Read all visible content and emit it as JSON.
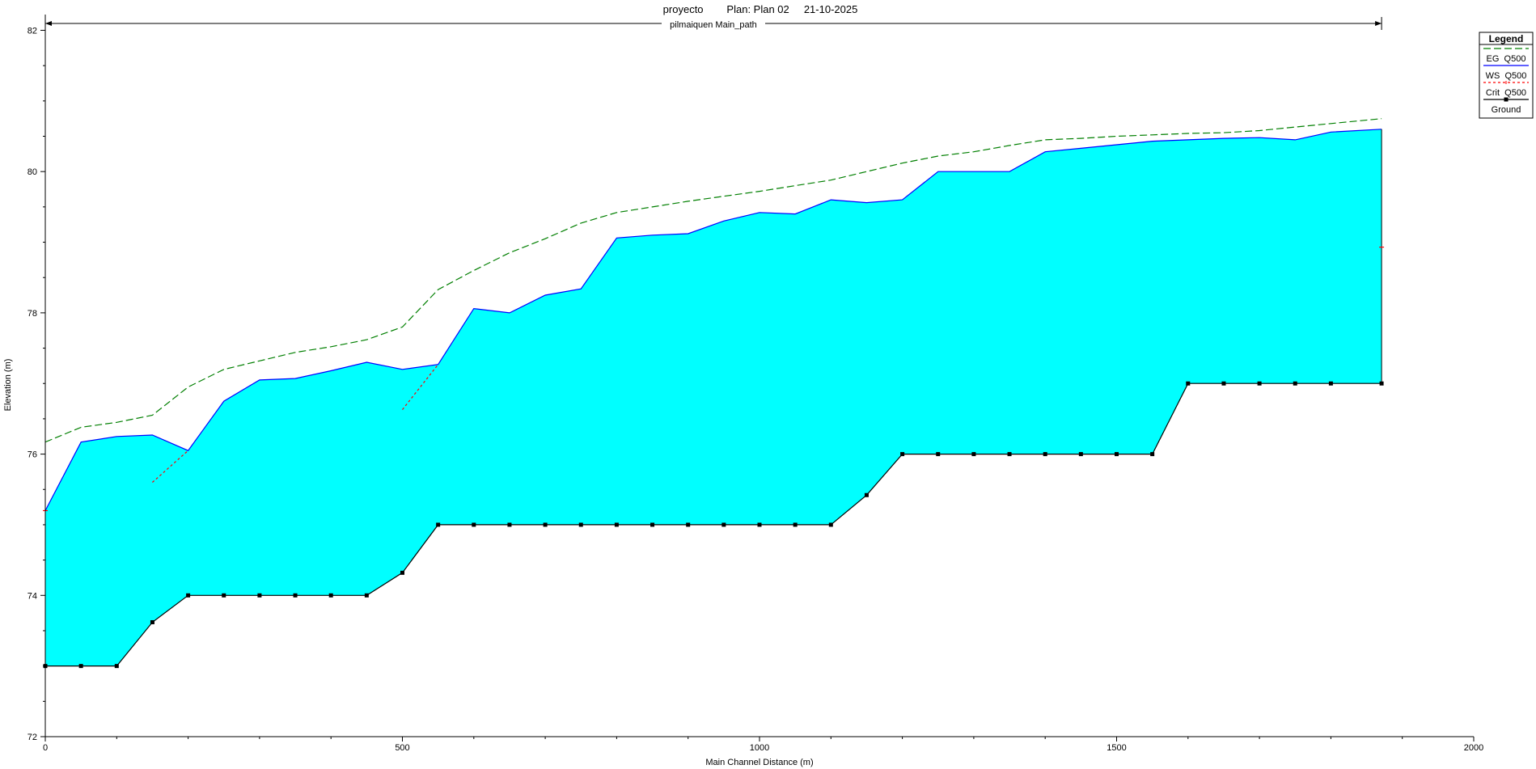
{
  "chart_data": {
    "type": "line",
    "title": "proyecto        Plan: Plan 02     21-10-2025",
    "reach_label": "pilmaiquen Main_path",
    "xlabel": "Main Channel Distance (m)",
    "ylabel": "Elevation (m)",
    "xlim": [
      0,
      2000
    ],
    "ylim": [
      72,
      82.2
    ],
    "x_ticks": [
      0,
      500,
      1000,
      1500,
      2000
    ],
    "y_ticks": [
      72,
      74,
      76,
      78,
      80,
      82
    ],
    "reach_extent": [
      0,
      1871
    ],
    "legend_title": "Legend",
    "legend_position": "top-right",
    "grid": false,
    "colors": {
      "eg": "#007F00",
      "ws": "#0000FF",
      "crit": "#FF0000",
      "ground": "#000000",
      "water_fill": "#00FFFF"
    },
    "series": [
      {
        "name": "EG  Q500",
        "style": "dashed",
        "x": [
          0,
          50,
          100,
          150,
          200,
          250,
          300,
          350,
          400,
          450,
          500,
          550,
          600,
          650,
          700,
          750,
          800,
          850,
          900,
          950,
          1000,
          1050,
          1100,
          1150,
          1200,
          1250,
          1300,
          1350,
          1400,
          1450,
          1500,
          1550,
          1600,
          1650,
          1700,
          1750,
          1800,
          1871
        ],
        "values": [
          76.17,
          76.38,
          76.45,
          76.55,
          76.95,
          77.2,
          77.32,
          77.44,
          77.52,
          77.62,
          77.8,
          78.33,
          78.6,
          78.85,
          79.05,
          79.27,
          79.42,
          79.5,
          79.58,
          79.65,
          79.72,
          79.8,
          79.88,
          80.0,
          80.12,
          80.22,
          80.28,
          80.37,
          80.45,
          80.47,
          80.5,
          80.52,
          80.54,
          80.55,
          80.58,
          80.63,
          80.68,
          80.75
        ]
      },
      {
        "name": "WS  Q500",
        "style": "solid",
        "x": [
          0,
          50,
          100,
          150,
          200,
          250,
          300,
          350,
          400,
          450,
          500,
          550,
          600,
          650,
          700,
          750,
          800,
          850,
          900,
          950,
          1000,
          1050,
          1100,
          1150,
          1200,
          1250,
          1300,
          1350,
          1400,
          1450,
          1500,
          1550,
          1600,
          1650,
          1700,
          1750,
          1800,
          1871
        ],
        "values": [
          75.2,
          76.17,
          76.25,
          76.27,
          76.05,
          76.75,
          77.05,
          77.07,
          77.18,
          77.3,
          77.2,
          77.27,
          78.06,
          78.0,
          78.25,
          78.34,
          79.06,
          79.1,
          79.12,
          79.3,
          79.42,
          79.4,
          79.6,
          79.56,
          79.6,
          80.0,
          80.0,
          80.0,
          80.28,
          80.33,
          80.38,
          80.43,
          80.45,
          80.47,
          80.48,
          80.45,
          80.56,
          80.6
        ]
      },
      {
        "name": "Crit  Q500",
        "style": "dotted",
        "segments": [
          {
            "x": [
              0
            ],
            "values": [
              75.2
            ]
          },
          {
            "x": [
              150,
              200
            ],
            "values": [
              75.6,
              76.05
            ]
          },
          {
            "x": [
              500,
              550
            ],
            "values": [
              76.63,
              77.27
            ]
          },
          {
            "x": [
              1871
            ],
            "values": [
              78.93
            ]
          }
        ]
      },
      {
        "name": "Ground",
        "style": "solid-markers",
        "x": [
          0,
          50,
          100,
          150,
          200,
          250,
          300,
          350,
          400,
          450,
          500,
          550,
          600,
          650,
          700,
          750,
          800,
          850,
          900,
          950,
          1000,
          1050,
          1100,
          1150,
          1200,
          1250,
          1300,
          1350,
          1400,
          1450,
          1500,
          1550,
          1600,
          1650,
          1700,
          1750,
          1800,
          1871
        ],
        "values": [
          73.0,
          73.0,
          73.0,
          73.62,
          74.0,
          74.0,
          74.0,
          74.0,
          74.0,
          74.0,
          74.32,
          75.0,
          75.0,
          75.0,
          75.0,
          75.0,
          75.0,
          75.0,
          75.0,
          75.0,
          75.0,
          75.0,
          75.0,
          75.42,
          76.0,
          76.0,
          76.0,
          76.0,
          76.0,
          76.0,
          76.0,
          76.0,
          77.0,
          77.0,
          77.0,
          77.0,
          77.0,
          77.0
        ]
      }
    ]
  }
}
